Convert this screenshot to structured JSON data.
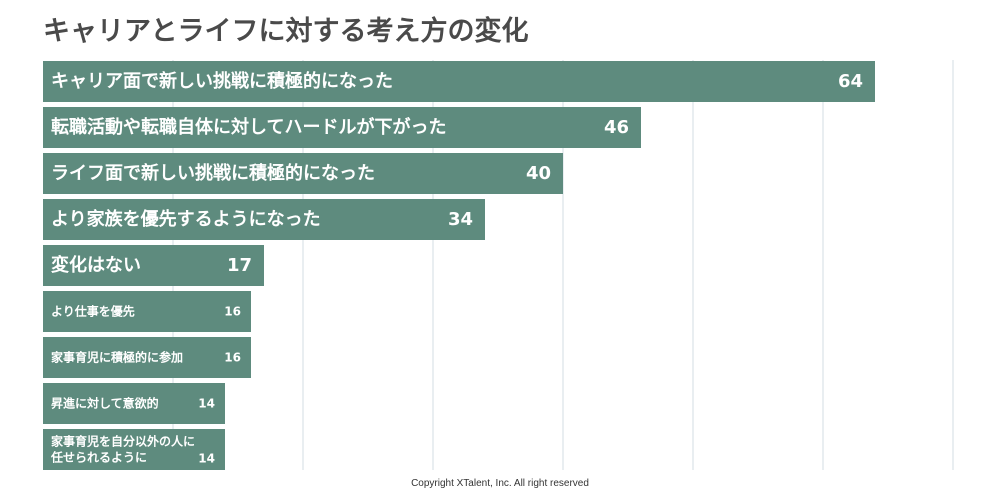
{
  "chart_data": {
    "type": "bar",
    "orientation": "horizontal",
    "title": "キャリアとライフに対する考え方の変化",
    "categories": [
      "キャリア面で新しい挑戦に積極的になった",
      "転職活動や転職自体に対してハードルが下がった",
      "ライフ面で新しい挑戦に積極的になった",
      "より家族を優先するようになった",
      "変化はない",
      "より仕事を優先",
      "家事育児に積極的に参加",
      "昇進に対して意欲的",
      "家事育児を自分以外の人に\n任せられるように"
    ],
    "values": [
      64,
      46,
      40,
      34,
      17,
      16,
      16,
      14,
      14
    ],
    "xlim": [
      0,
      70
    ],
    "grid": true,
    "xlabel": "",
    "ylabel": "",
    "bar_color": "#5e8b7e",
    "grid_color": "#d3dde3",
    "label_color": "#ffffff"
  },
  "footer": {
    "copyright": "Copyright XTalent, Inc. All right reserved"
  }
}
